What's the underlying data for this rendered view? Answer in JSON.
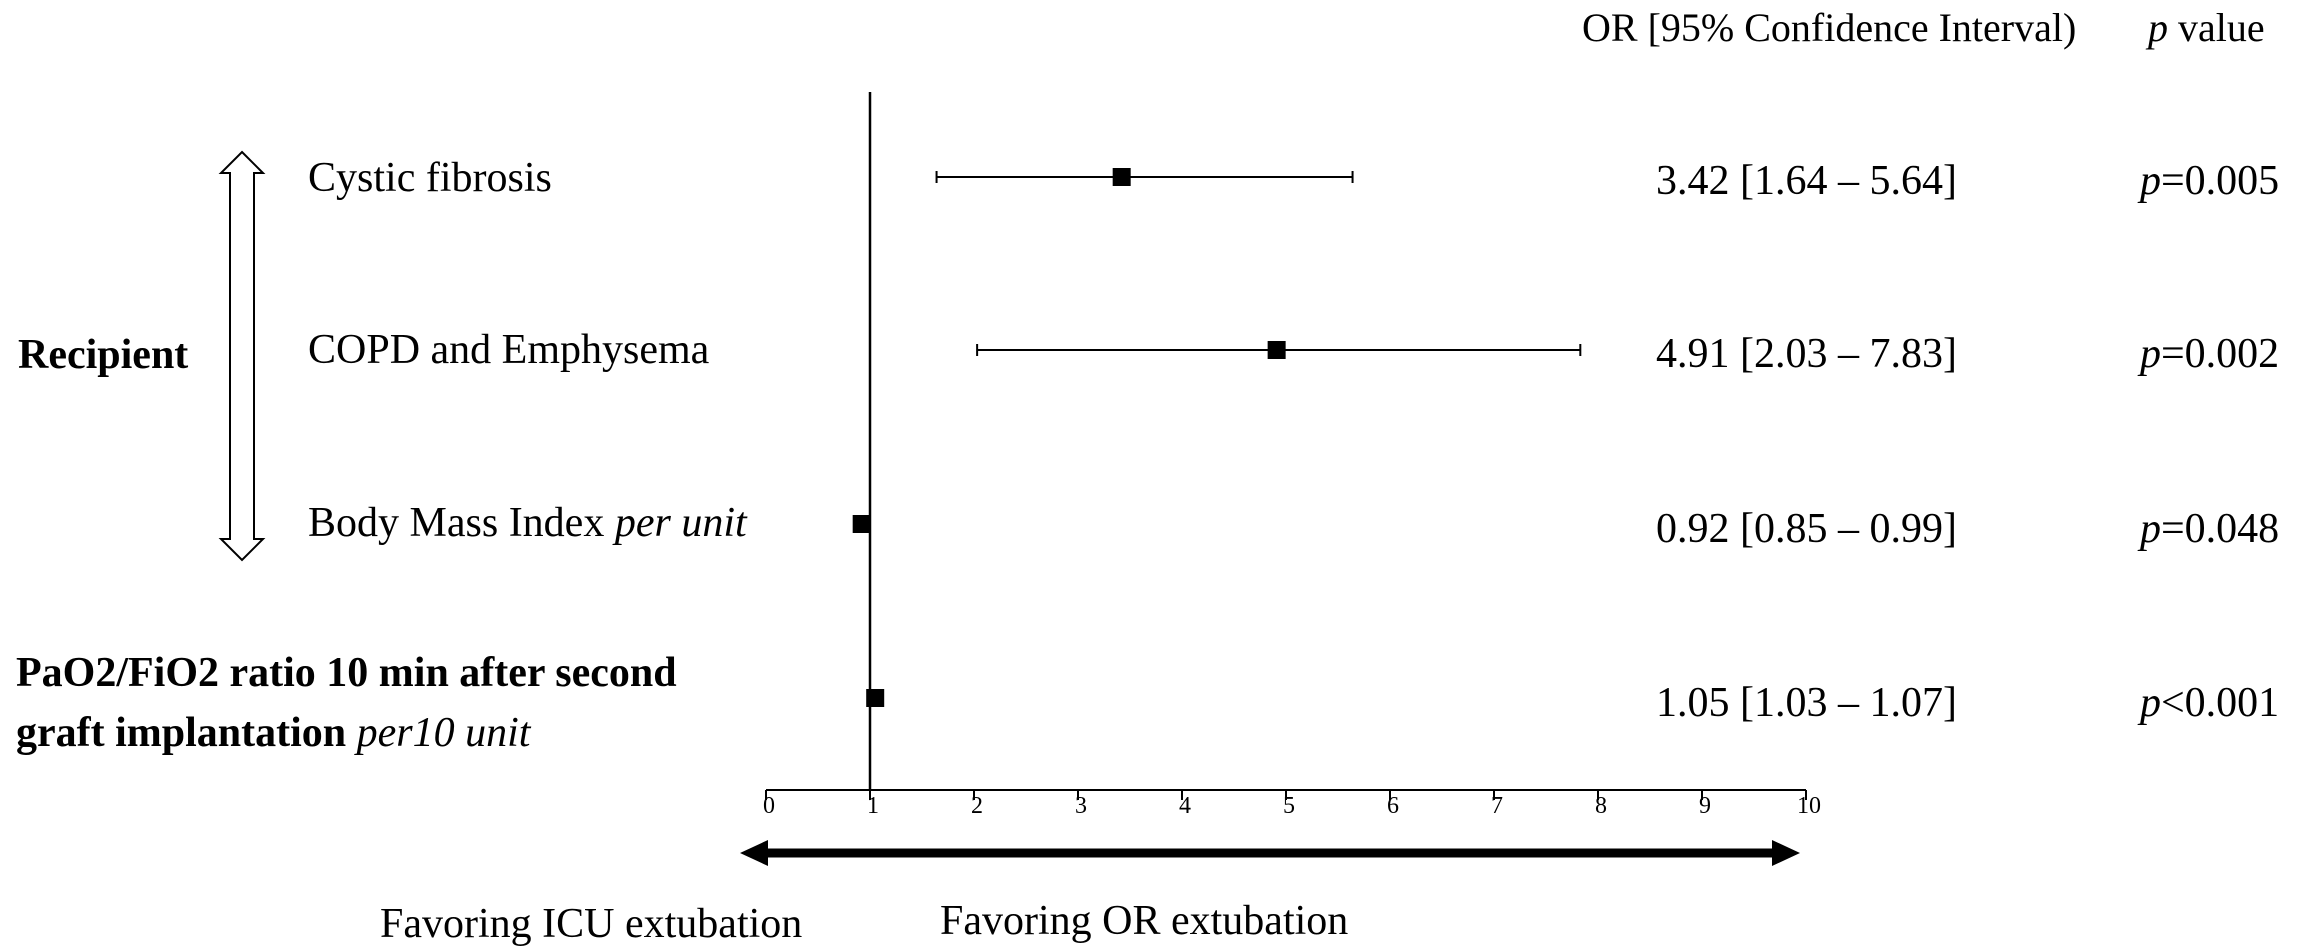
{
  "header": {
    "or_ci": "OR [95% Confidence Interval)",
    "p_italic": "p",
    "p_rest": " value"
  },
  "group_label": "Recipient",
  "footer": {
    "left": "Favoring ICU extubation",
    "right": "Favoring OR extubation"
  },
  "rows": [
    {
      "label": "Cystic fibrosis",
      "label_italic": "",
      "stat": "3.42 [1.64 – 5.64]",
      "p_letter": "p",
      "p_value": "=0.005"
    },
    {
      "label": "COPD and Emphysema",
      "label_italic": "",
      "stat": "4.91 [2.03 – 7.83]",
      "p_letter": "p",
      "p_value": "=0.002"
    },
    {
      "label": "Body Mass Index ",
      "label_italic": "per unit",
      "stat": "0.92 [0.85 – 0.99]",
      "p_letter": "p",
      "p_value": "=0.048"
    },
    {
      "label_line1": "PaO2/FiO2 ratio 10 min after second",
      "label_line2": "graft implantation ",
      "label_italic": "per10 unit",
      "stat": "1.05 [1.03 – 1.07]",
      "p_letter": "p",
      "p_value": "<0.001"
    }
  ],
  "chart_data": {
    "type": "forest",
    "x": {
      "min": 0,
      "max": 10,
      "ticks": [
        0,
        1,
        2,
        3,
        4,
        5,
        6,
        7,
        8,
        9,
        10
      ],
      "reference_line": 1
    },
    "points": [
      {
        "label": "Cystic fibrosis",
        "or": 3.42,
        "ci_low": 1.64,
        "ci_high": 5.64
      },
      {
        "label": "COPD and Emphysema",
        "or": 4.91,
        "ci_low": 2.03,
        "ci_high": 7.83
      },
      {
        "label": "Body Mass Index per unit",
        "or": 0.92,
        "ci_low": 0.85,
        "ci_high": 0.99
      },
      {
        "label": "PaO2/FiO2 ratio 10 min after second graft implantation per10 unit",
        "or": 1.05,
        "ci_low": 1.03,
        "ci_high": 1.07
      }
    ],
    "grid": false
  }
}
